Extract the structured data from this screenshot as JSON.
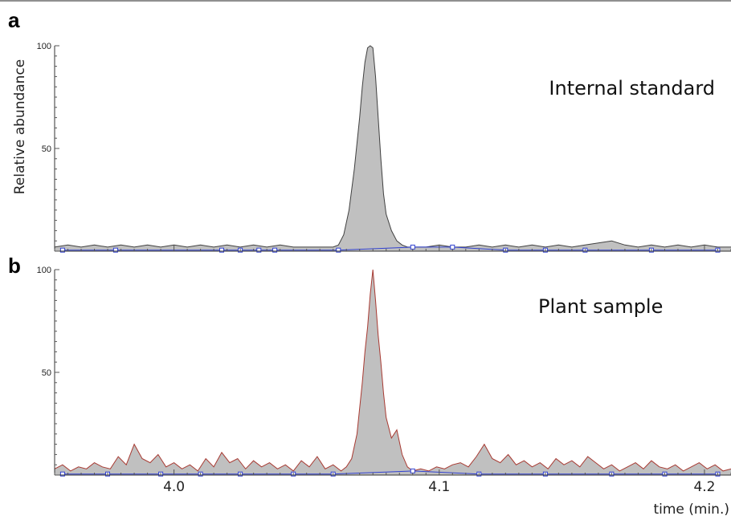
{
  "chart_data": [
    {
      "panel_label": "a",
      "type": "area",
      "annotation": "Internal standard",
      "ylabel": "Relative abundance",
      "ylim": [
        0,
        100
      ],
      "yticks": [
        50,
        100
      ],
      "xlim": [
        3.955,
        4.21
      ],
      "fill_color": "#c0c0c0",
      "line_color": "#404040",
      "baseline_color": "#3040d0",
      "series": [
        {
          "x": [
            3.955,
            3.96,
            3.965,
            3.97,
            3.975,
            3.98,
            3.985,
            3.99,
            3.995,
            4.0,
            4.005,
            4.01,
            4.015,
            4.02,
            4.025,
            4.03,
            4.035,
            4.04,
            4.045,
            4.05,
            4.055,
            4.06,
            4.062,
            4.064,
            4.066,
            4.068,
            4.07,
            4.071,
            4.072,
            4.073,
            4.074,
            4.075,
            4.076,
            4.077,
            4.078,
            4.079,
            4.08,
            4.082,
            4.084,
            4.086,
            4.088,
            4.09,
            4.095,
            4.1,
            4.105,
            4.11,
            4.115,
            4.12,
            4.125,
            4.13,
            4.135,
            4.14,
            4.145,
            4.15,
            4.155,
            4.16,
            4.165,
            4.17,
            4.175,
            4.18,
            4.185,
            4.19,
            4.195,
            4.2,
            4.205,
            4.21
          ],
          "y": [
            2,
            3,
            2,
            3,
            2,
            3,
            2,
            3,
            2,
            3,
            2,
            3,
            2,
            3,
            2,
            3,
            2,
            3,
            2,
            2,
            2,
            2,
            3,
            8,
            20,
            40,
            65,
            80,
            92,
            99,
            100,
            99,
            85,
            65,
            45,
            28,
            18,
            10,
            5,
            3,
            2,
            2,
            2,
            3,
            2,
            2,
            3,
            2,
            3,
            2,
            3,
            2,
            3,
            2,
            3,
            4,
            5,
            3,
            2,
            3,
            2,
            3,
            2,
            3,
            2,
            2
          ]
        }
      ],
      "baseline_markers_x": [
        3.958,
        3.978,
        4.018,
        4.025,
        4.032,
        4.038,
        4.062,
        4.09,
        4.105,
        4.125,
        4.14,
        4.155,
        4.18,
        4.205
      ]
    },
    {
      "panel_label": "b",
      "type": "area",
      "annotation": "Plant sample",
      "ylim": [
        0,
        100
      ],
      "yticks": [
        50,
        100
      ],
      "xlim": [
        3.955,
        4.21
      ],
      "xticks": [
        4.0,
        4.1,
        4.2
      ],
      "xtick_labels": [
        "4.0",
        "4.1",
        "4.2"
      ],
      "xlabel": "time (min.)",
      "fill_color": "#c0c0c0",
      "line_color": "#a83a32",
      "baseline_color": "#3040d0",
      "series": [
        {
          "x": [
            3.955,
            3.958,
            3.961,
            3.964,
            3.967,
            3.97,
            3.973,
            3.976,
            3.979,
            3.982,
            3.985,
            3.988,
            3.991,
            3.994,
            3.997,
            4.0,
            4.003,
            4.006,
            4.009,
            4.012,
            4.015,
            4.018,
            4.021,
            4.024,
            4.027,
            4.03,
            4.033,
            4.036,
            4.039,
            4.042,
            4.045,
            4.048,
            4.051,
            4.054,
            4.057,
            4.06,
            4.063,
            4.065,
            4.067,
            4.069,
            4.071,
            4.072,
            4.073,
            4.074,
            4.075,
            4.076,
            4.077,
            4.078,
            4.079,
            4.08,
            4.082,
            4.084,
            4.086,
            4.088,
            4.09,
            4.093,
            4.096,
            4.099,
            4.102,
            4.105,
            4.108,
            4.111,
            4.114,
            4.117,
            4.12,
            4.123,
            4.126,
            4.129,
            4.132,
            4.135,
            4.138,
            4.141,
            4.144,
            4.147,
            4.15,
            4.153,
            4.156,
            4.159,
            4.162,
            4.165,
            4.168,
            4.171,
            4.174,
            4.177,
            4.18,
            4.183,
            4.186,
            4.189,
            4.192,
            4.195,
            4.198,
            4.201,
            4.204,
            4.207,
            4.21
          ],
          "y": [
            3,
            5,
            2,
            4,
            3,
            6,
            4,
            3,
            9,
            5,
            15,
            8,
            6,
            10,
            4,
            6,
            3,
            5,
            2,
            8,
            4,
            11,
            6,
            8,
            3,
            7,
            4,
            6,
            3,
            5,
            2,
            7,
            4,
            9,
            3,
            5,
            2,
            4,
            8,
            20,
            45,
            60,
            72,
            88,
            100,
            85,
            68,
            55,
            40,
            28,
            18,
            22,
            10,
            4,
            2,
            3,
            2,
            4,
            3,
            5,
            6,
            4,
            9,
            15,
            8,
            6,
            10,
            5,
            7,
            4,
            6,
            3,
            8,
            5,
            7,
            4,
            9,
            6,
            3,
            5,
            2,
            4,
            6,
            3,
            7,
            4,
            3,
            5,
            2,
            4,
            6,
            3,
            5,
            2,
            3
          ]
        }
      ],
      "baseline_markers_x": [
        3.958,
        3.975,
        3.995,
        4.01,
        4.025,
        4.045,
        4.06,
        4.09,
        4.115,
        4.14,
        4.165,
        4.185,
        4.205
      ]
    }
  ]
}
